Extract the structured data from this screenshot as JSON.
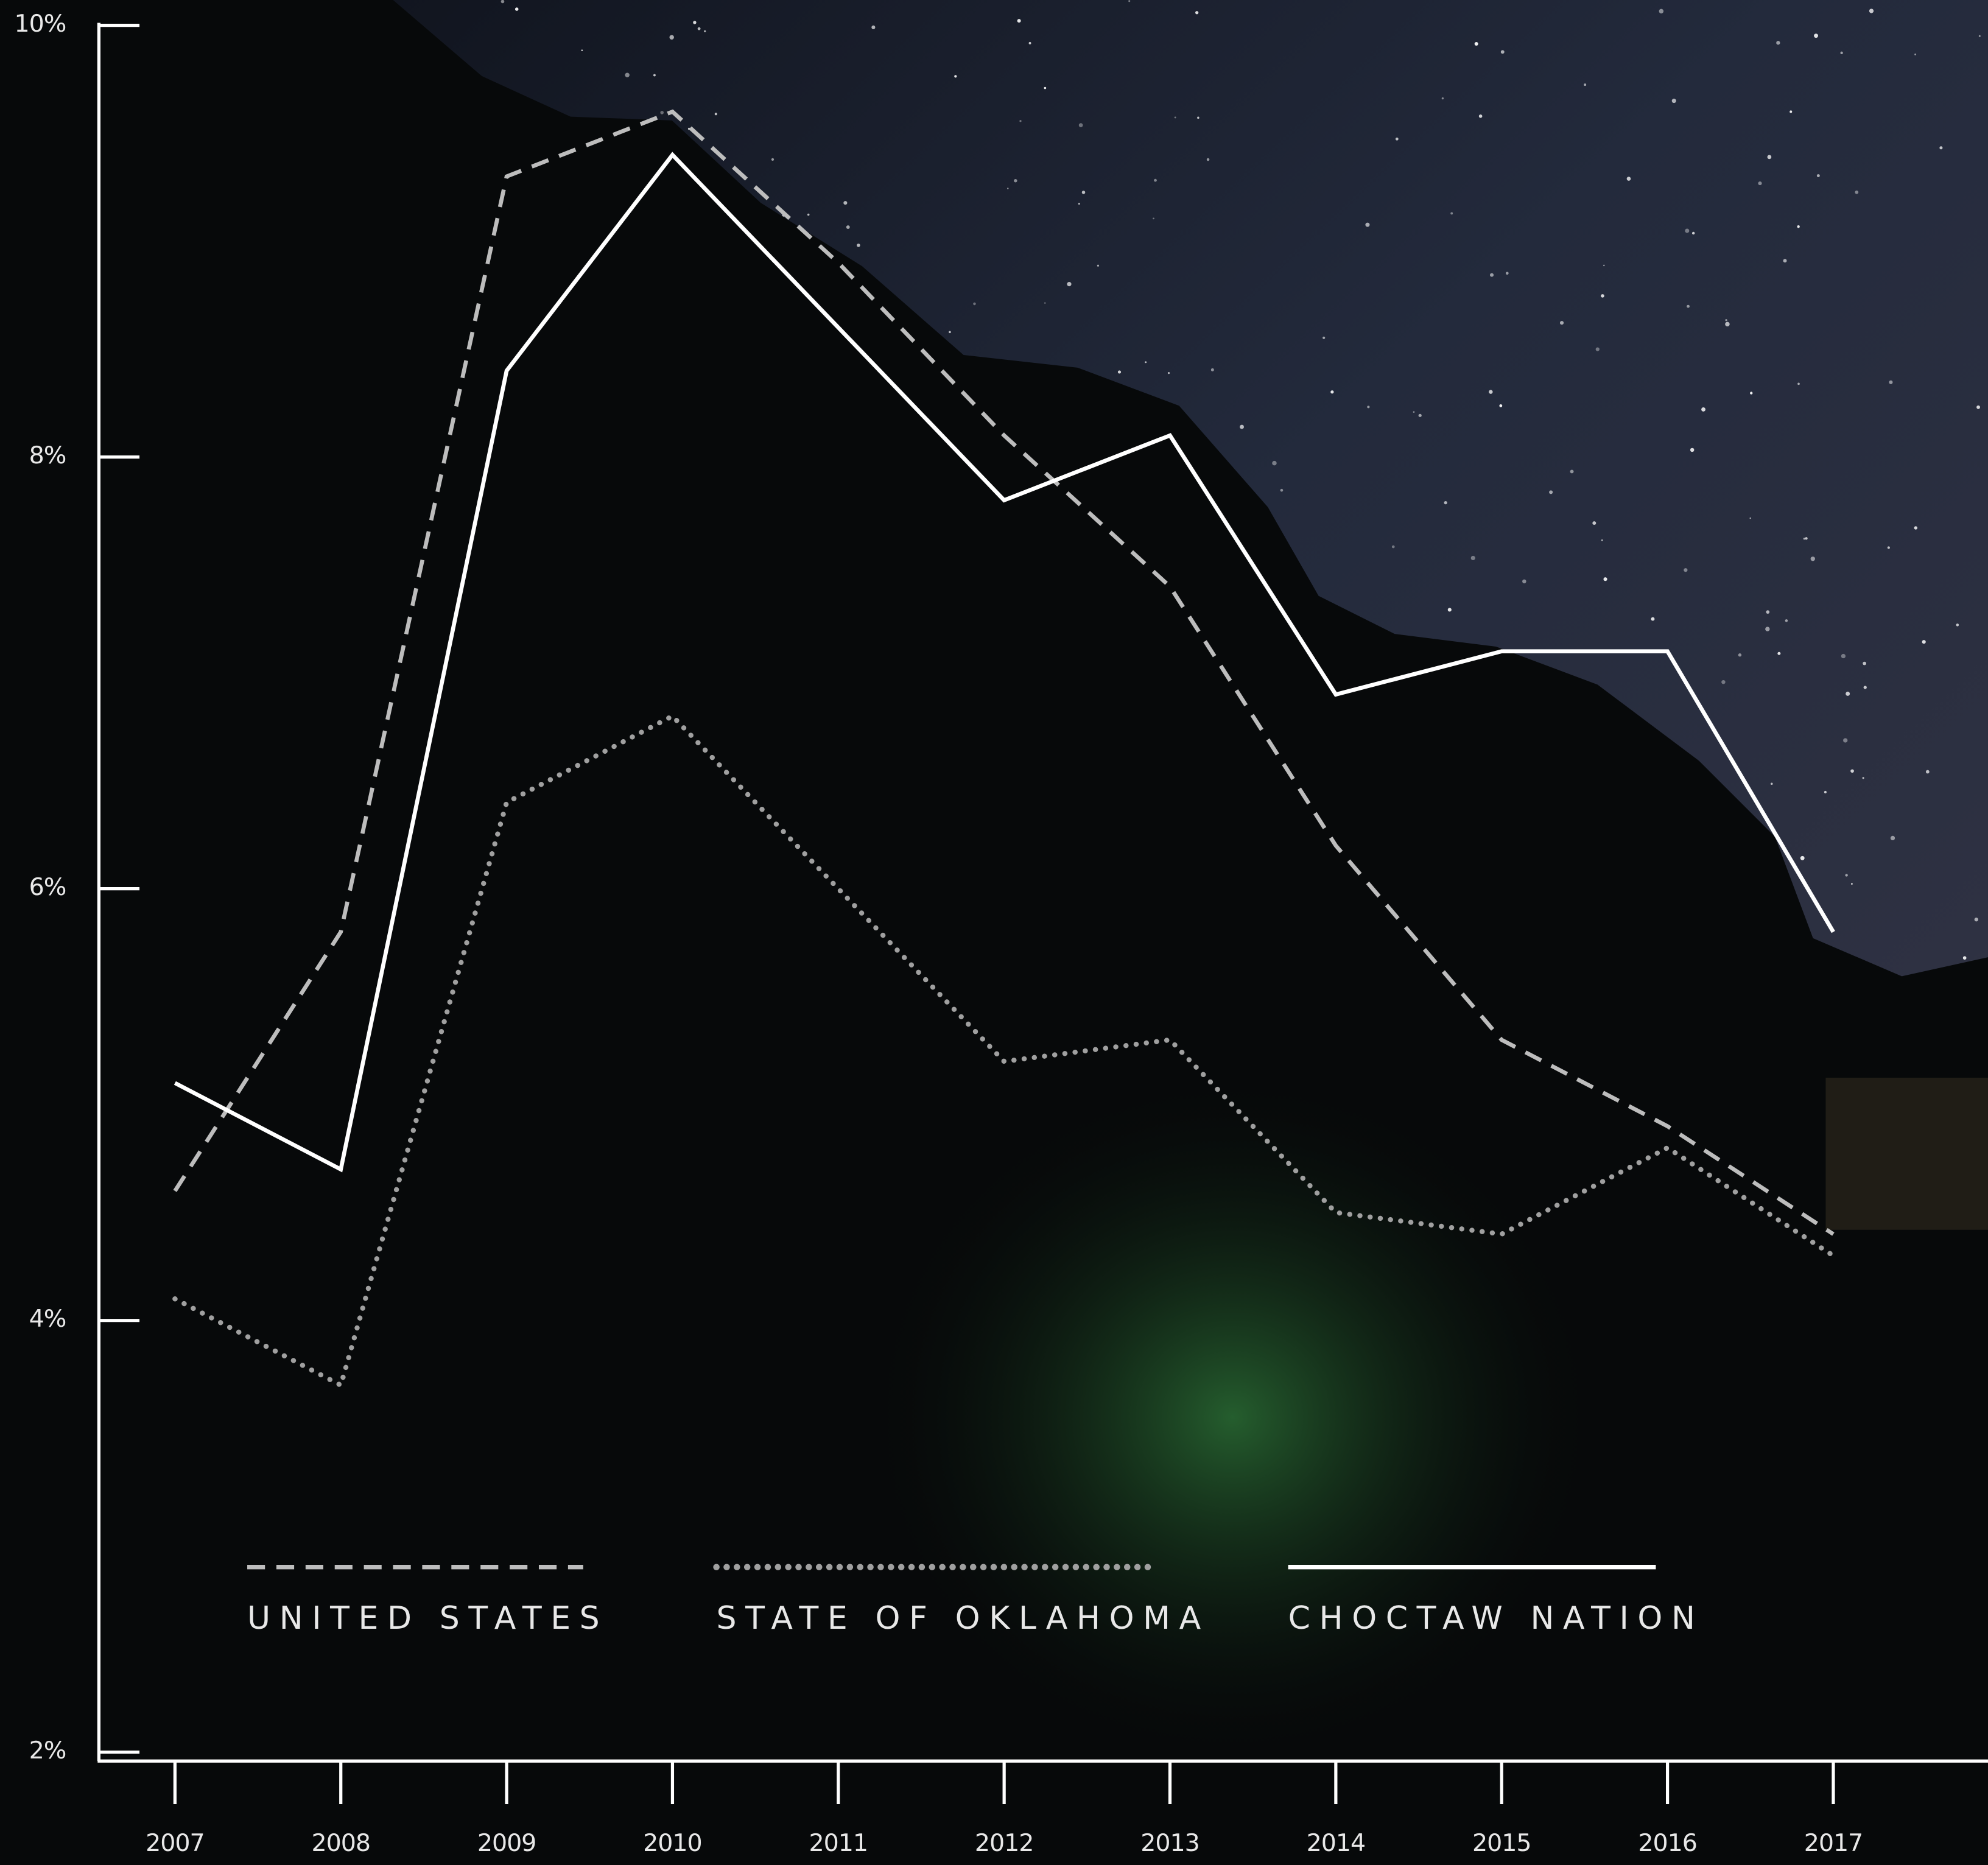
{
  "chart_data": {
    "type": "line",
    "categories": [
      "2007",
      "2008",
      "2009",
      "2010",
      "2011",
      "2012",
      "2013",
      "2014",
      "2015",
      "2016",
      "2017"
    ],
    "series": [
      {
        "name": "UNITED STATES",
        "color": "#bdbdbd",
        "style": "dashed",
        "values": [
          4.6,
          5.8,
          9.3,
          9.6,
          8.9,
          8.1,
          7.4,
          6.2,
          5.3,
          4.9,
          4.4
        ]
      },
      {
        "name": "STATE OF OKLAHOMA",
        "color": "#a0a0a0",
        "style": "dotted",
        "values": [
          4.1,
          3.7,
          6.4,
          6.8,
          6.0,
          5.2,
          5.3,
          4.5,
          4.4,
          4.8,
          4.3
        ]
      },
      {
        "name": "CHOCTAW NATION",
        "color": "#ffffff",
        "style": "solid",
        "values": [
          5.1,
          4.7,
          8.4,
          9.4,
          8.6,
          7.8,
          8.1,
          6.9,
          7.1,
          7.1,
          5.8
        ]
      }
    ],
    "ylim": [
      2,
      10
    ],
    "yticks": [
      {
        "value": 2,
        "label": "2%"
      },
      {
        "value": 4,
        "label": "4%"
      },
      {
        "value": 6,
        "label": "6%"
      },
      {
        "value": 8,
        "label": "8%"
      },
      {
        "value": 10,
        "label": "10%"
      }
    ]
  }
}
